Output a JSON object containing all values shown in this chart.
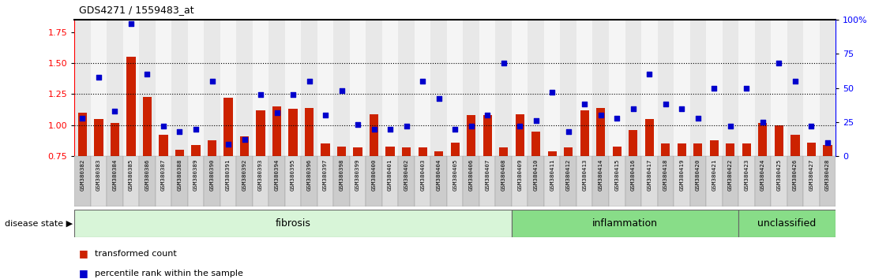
{
  "title": "GDS4271 / 1559483_at",
  "samples": [
    "GSM380382",
    "GSM380383",
    "GSM380384",
    "GSM380385",
    "GSM380386",
    "GSM380387",
    "GSM380388",
    "GSM380389",
    "GSM380390",
    "GSM380391",
    "GSM380392",
    "GSM380393",
    "GSM380394",
    "GSM380395",
    "GSM380396",
    "GSM380397",
    "GSM380398",
    "GSM380399",
    "GSM380400",
    "GSM380401",
    "GSM380402",
    "GSM380403",
    "GSM380404",
    "GSM380405",
    "GSM380406",
    "GSM380407",
    "GSM380408",
    "GSM380409",
    "GSM380410",
    "GSM380411",
    "GSM380412",
    "GSM380413",
    "GSM380414",
    "GSM380415",
    "GSM380416",
    "GSM380417",
    "GSM380418",
    "GSM380419",
    "GSM380420",
    "GSM380421",
    "GSM380422",
    "GSM380423",
    "GSM380424",
    "GSM380425",
    "GSM380426",
    "GSM380427",
    "GSM380428"
  ],
  "bar_values": [
    1.1,
    1.05,
    1.02,
    1.55,
    1.23,
    0.92,
    0.8,
    0.84,
    0.88,
    1.22,
    0.91,
    1.12,
    1.15,
    1.13,
    1.14,
    0.85,
    0.83,
    0.82,
    1.09,
    0.83,
    0.82,
    0.82,
    0.79,
    0.86,
    1.08,
    1.08,
    0.82,
    1.09,
    0.95,
    0.79,
    0.82,
    1.12,
    1.14,
    0.83,
    0.96,
    1.05,
    0.85,
    0.85,
    0.85,
    0.88,
    0.85,
    0.85,
    1.02,
    1.0,
    0.92,
    0.86,
    0.84
  ],
  "percentile_values": [
    28,
    58,
    33,
    97,
    60,
    22,
    18,
    20,
    55,
    9,
    12,
    45,
    32,
    45,
    55,
    30,
    48,
    23,
    20,
    20,
    22,
    55,
    42,
    20,
    22,
    30,
    68,
    22,
    26,
    47,
    18,
    38,
    30,
    28,
    35,
    60,
    38,
    35,
    28,
    50,
    22,
    50,
    25,
    68,
    55,
    22,
    10
  ],
  "fibrosis_count": 27,
  "inflammation_count": 14,
  "unclassified_count": 6,
  "bar_color": "#CC2200",
  "scatter_color": "#0000CC",
  "bar_bottom": 0.75,
  "ylim_left": [
    0.75,
    1.85
  ],
  "ylim_right": [
    0,
    100
  ],
  "yticks_left": [
    0.75,
    1.0,
    1.25,
    1.5,
    1.75
  ],
  "yticks_right": [
    0,
    25,
    50,
    75,
    100
  ],
  "hlines": [
    1.0,
    1.25,
    1.5
  ],
  "legend_bar_label": "transformed count",
  "legend_scatter_label": "percentile rank within the sample",
  "disease_state_label": "disease state",
  "plot_bg_color": "#ffffff",
  "tick_bg_color": "#CCCCCC",
  "light_green": "#d8f5d8",
  "mid_green": "#88dd88"
}
